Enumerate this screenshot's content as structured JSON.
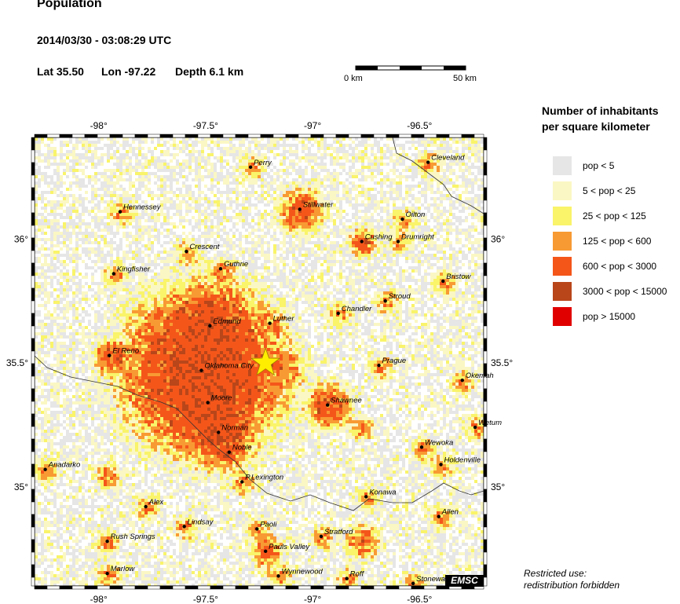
{
  "header": {
    "title": "Population",
    "datetime": "2014/03/30 - 03:08:29 UTC",
    "lat": "Lat 35.50",
    "lon": "Lon -97.22",
    "depth": "Depth  6.1 km"
  },
  "scale": {
    "start_label": "0 km",
    "end_label": "50 km"
  },
  "map": {
    "lon_range": [
      -98.3,
      -96.2
    ],
    "lat_range": [
      34.6,
      36.41
    ],
    "lon_ticks": [
      {
        "value": -98.0,
        "label": "-98°"
      },
      {
        "value": -97.5,
        "label": "-97.5°"
      },
      {
        "value": -97.0,
        "label": "-97°"
      },
      {
        "value": -96.5,
        "label": "-96.5°"
      }
    ],
    "lat_ticks": [
      {
        "value": 36.0,
        "label": "36°"
      },
      {
        "value": 35.5,
        "label": "35.5°"
      },
      {
        "value": 35.0,
        "label": "35°"
      }
    ],
    "epicenter": {
      "lon": -97.22,
      "lat": 35.5,
      "color": "#ffee00"
    },
    "cities": [
      {
        "name": "Perry",
        "lon": -97.29,
        "lat": 36.29
      },
      {
        "name": "Cleveland",
        "lon": -96.46,
        "lat": 36.31
      },
      {
        "name": "Hennessey",
        "lon": -97.9,
        "lat": 36.11
      },
      {
        "name": "Stillwater",
        "lon": -97.06,
        "lat": 36.12
      },
      {
        "name": "Oilton",
        "lon": -96.58,
        "lat": 36.08
      },
      {
        "name": "Crescent",
        "lon": -97.59,
        "lat": 35.95
      },
      {
        "name": "Cushing",
        "lon": -96.77,
        "lat": 35.99
      },
      {
        "name": "Drumright",
        "lon": -96.6,
        "lat": 35.99
      },
      {
        "name": "Kingfisher",
        "lon": -97.93,
        "lat": 35.86
      },
      {
        "name": "Guthrie",
        "lon": -97.43,
        "lat": 35.88
      },
      {
        "name": "Bristow",
        "lon": -96.39,
        "lat": 35.83
      },
      {
        "name": "Stroud",
        "lon": -96.66,
        "lat": 35.75
      },
      {
        "name": "Chandler",
        "lon": -96.88,
        "lat": 35.7
      },
      {
        "name": "Luther",
        "lon": -97.2,
        "lat": 35.66
      },
      {
        "name": "Edmund",
        "lon": -97.48,
        "lat": 35.65
      },
      {
        "name": "El Reno",
        "lon": -97.95,
        "lat": 35.53
      },
      {
        "name": "Oklahoma City",
        "lon": -97.52,
        "lat": 35.47
      },
      {
        "name": "Prague",
        "lon": -96.69,
        "lat": 35.49
      },
      {
        "name": "Okemah",
        "lon": -96.3,
        "lat": 35.43
      },
      {
        "name": "Moore",
        "lon": -97.49,
        "lat": 35.34
      },
      {
        "name": "Shawnee",
        "lon": -96.93,
        "lat": 35.33
      },
      {
        "name": "Wetum",
        "lon": -96.24,
        "lat": 35.24
      },
      {
        "name": "Norman",
        "lon": -97.44,
        "lat": 35.22
      },
      {
        "name": "Wewoka",
        "lon": -96.49,
        "lat": 35.16
      },
      {
        "name": "Noble",
        "lon": -97.39,
        "lat": 35.14
      },
      {
        "name": "Holdenville",
        "lon": -96.4,
        "lat": 35.09
      },
      {
        "name": "Anadarko",
        "lon": -98.25,
        "lat": 35.07
      },
      {
        "name": "P.Lexington",
        "lon": -97.33,
        "lat": 35.02
      },
      {
        "name": "Konawa",
        "lon": -96.75,
        "lat": 34.96
      },
      {
        "name": "Alex",
        "lon": -97.78,
        "lat": 34.92
      },
      {
        "name": "Allen",
        "lon": -96.41,
        "lat": 34.88
      },
      {
        "name": "Lindsay",
        "lon": -97.6,
        "lat": 34.84
      },
      {
        "name": "Paoli",
        "lon": -97.26,
        "lat": 34.83
      },
      {
        "name": "Rush Springs",
        "lon": -97.96,
        "lat": 34.78
      },
      {
        "name": "Stratford",
        "lon": -96.96,
        "lat": 34.8
      },
      {
        "name": "Pauls Valley",
        "lon": -97.22,
        "lat": 34.74
      },
      {
        "name": "Marlow",
        "lon": -97.96,
        "lat": 34.65
      },
      {
        "name": "Wynnewood",
        "lon": -97.16,
        "lat": 34.64
      },
      {
        "name": "Roff",
        "lon": -96.84,
        "lat": 34.63
      },
      {
        "name": "Stonewall",
        "lon": -96.53,
        "lat": 34.61
      }
    ]
  },
  "legend": {
    "title": "Number of inhabitants per square kilometer",
    "items": [
      {
        "label": "pop < 5",
        "color": "#e6e6e6"
      },
      {
        "label": "5 < pop < 25",
        "color": "#fbf7c4"
      },
      {
        "label": "25 < pop < 125",
        "color": "#f9f46a"
      },
      {
        "label": "125 < pop < 600",
        "color": "#f89a33"
      },
      {
        "label": "600 < pop < 3000",
        "color": "#f4561a"
      },
      {
        "label": "3000 < pop < 15000",
        "color": "#b8461a"
      },
      {
        "label": "pop > 15000",
        "color": "#e00000"
      }
    ]
  },
  "footer": {
    "badge": "EMSC",
    "restricted_line1": "Restricted use:",
    "restricted_line2": "redistribution forbidden"
  }
}
